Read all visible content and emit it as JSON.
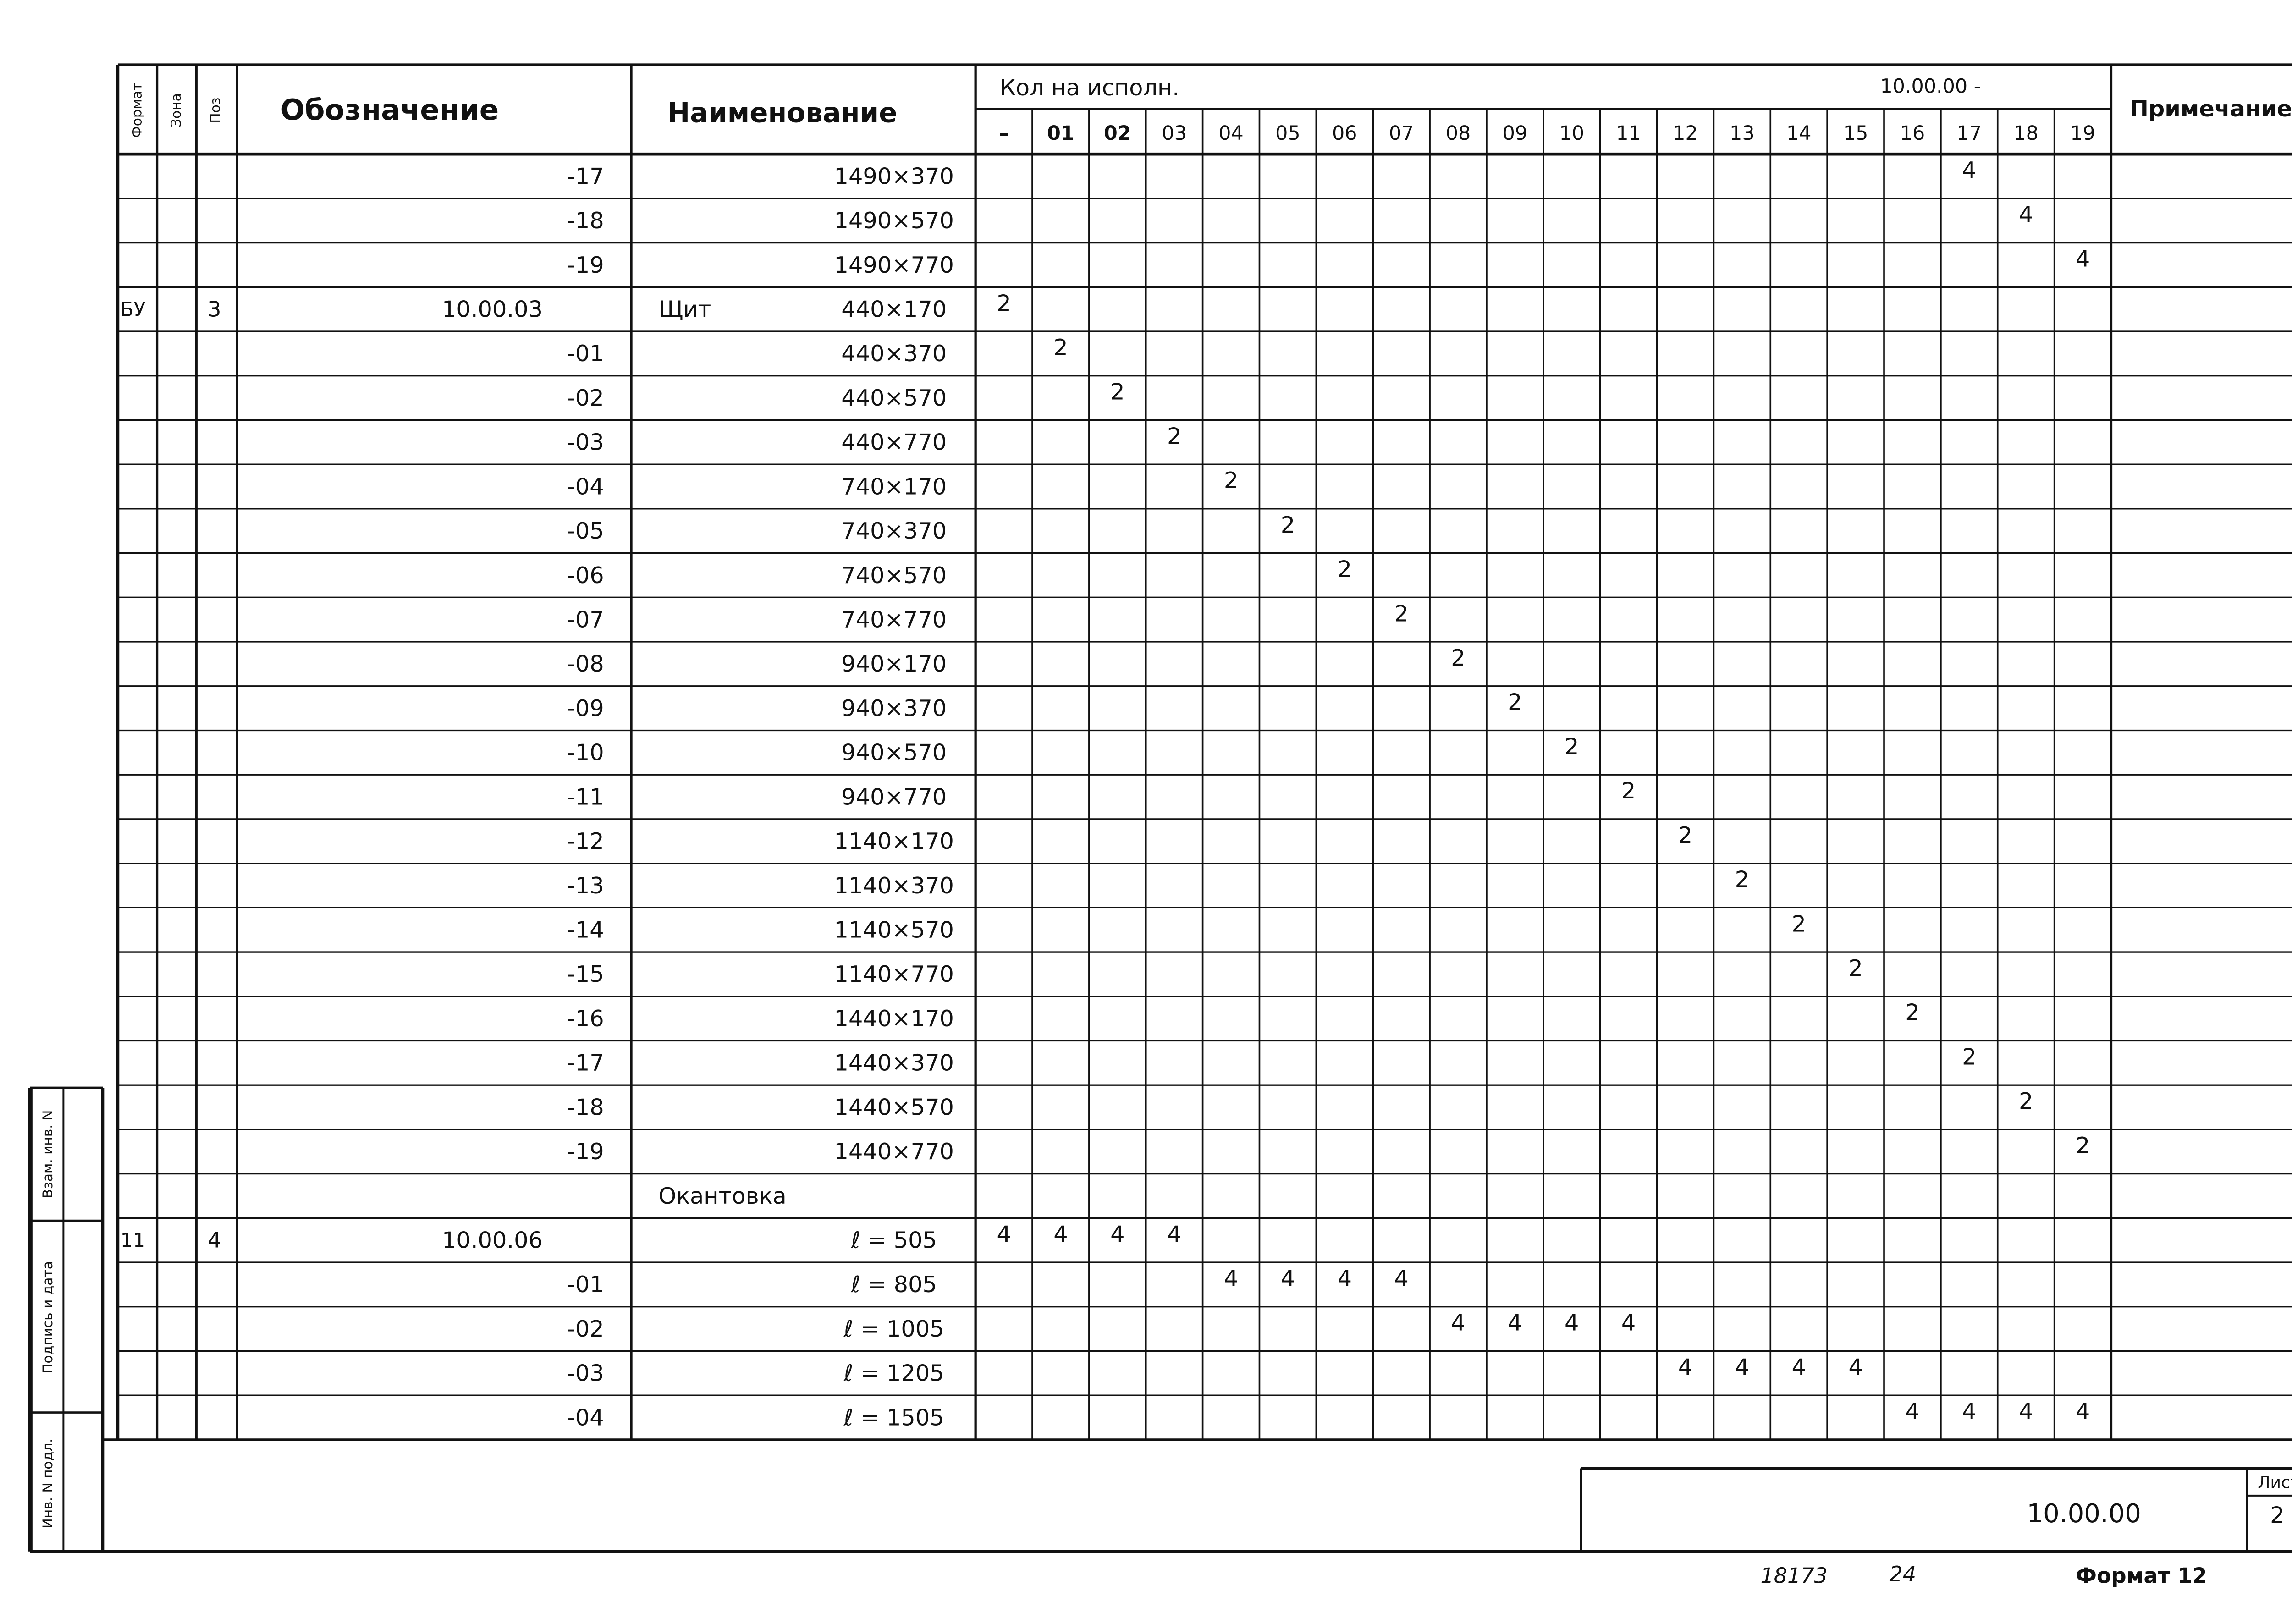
{
  "header": {
    "format": "Формат",
    "zone": "Зона",
    "pos": "Поз",
    "designation": "Обозначение",
    "name": "Наименование",
    "qty_title": "Кол на исполн.",
    "qty_prefix": "10.00.00 -",
    "columns": [
      "–",
      "01",
      "02",
      "03",
      "04",
      "05",
      "06",
      "07",
      "08",
      "09",
      "10",
      "11",
      "12",
      "13",
      "14",
      "15",
      "16",
      "17",
      "18",
      "19"
    ],
    "note": "Примечание"
  },
  "rows": [
    {
      "designation": "-17",
      "size": "1490×370",
      "qty": [
        null,
        null,
        null,
        null,
        null,
        null,
        null,
        null,
        null,
        null,
        null,
        null,
        null,
        null,
        null,
        null,
        null,
        4,
        null,
        null
      ]
    },
    {
      "designation": "-18",
      "size": "1490×570",
      "qty": [
        null,
        null,
        null,
        null,
        null,
        null,
        null,
        null,
        null,
        null,
        null,
        null,
        null,
        null,
        null,
        null,
        null,
        null,
        4,
        null
      ]
    },
    {
      "designation": "-19",
      "size": "1490×770",
      "qty": [
        null,
        null,
        null,
        null,
        null,
        null,
        null,
        null,
        null,
        null,
        null,
        null,
        null,
        null,
        null,
        null,
        null,
        null,
        null,
        4
      ]
    },
    {
      "format": "БУ",
      "pos": "3",
      "designation": "10.00.03",
      "name": "Щит",
      "size": "440×170",
      "qty": [
        2,
        null,
        null,
        null,
        null,
        null,
        null,
        null,
        null,
        null,
        null,
        null,
        null,
        null,
        null,
        null,
        null,
        null,
        null,
        null
      ]
    },
    {
      "designation": "-01",
      "size": "440×370",
      "qty": [
        null,
        2,
        null,
        null,
        null,
        null,
        null,
        null,
        null,
        null,
        null,
        null,
        null,
        null,
        null,
        null,
        null,
        null,
        null,
        null
      ]
    },
    {
      "designation": "-02",
      "size": "440×570",
      "qty": [
        null,
        null,
        2,
        null,
        null,
        null,
        null,
        null,
        null,
        null,
        null,
        null,
        null,
        null,
        null,
        null,
        null,
        null,
        null,
        null
      ]
    },
    {
      "designation": "-03",
      "size": "440×770",
      "qty": [
        null,
        null,
        null,
        2,
        null,
        null,
        null,
        null,
        null,
        null,
        null,
        null,
        null,
        null,
        null,
        null,
        null,
        null,
        null,
        null
      ]
    },
    {
      "designation": "-04",
      "size": "740×170",
      "qty": [
        null,
        null,
        null,
        null,
        2,
        null,
        null,
        null,
        null,
        null,
        null,
        null,
        null,
        null,
        null,
        null,
        null,
        null,
        null,
        null
      ]
    },
    {
      "designation": "-05",
      "size": "740×370",
      "qty": [
        null,
        null,
        null,
        null,
        null,
        2,
        null,
        null,
        null,
        null,
        null,
        null,
        null,
        null,
        null,
        null,
        null,
        null,
        null,
        null
      ]
    },
    {
      "designation": "-06",
      "size": "740×570",
      "qty": [
        null,
        null,
        null,
        null,
        null,
        null,
        2,
        null,
        null,
        null,
        null,
        null,
        null,
        null,
        null,
        null,
        null,
        null,
        null,
        null
      ]
    },
    {
      "designation": "-07",
      "size": "740×770",
      "qty": [
        null,
        null,
        null,
        null,
        null,
        null,
        null,
        2,
        null,
        null,
        null,
        null,
        null,
        null,
        null,
        null,
        null,
        null,
        null,
        null
      ]
    },
    {
      "designation": "-08",
      "size": "940×170",
      "qty": [
        null,
        null,
        null,
        null,
        null,
        null,
        null,
        null,
        2,
        null,
        null,
        null,
        null,
        null,
        null,
        null,
        null,
        null,
        null,
        null
      ]
    },
    {
      "designation": "-09",
      "size": "940×370",
      "qty": [
        null,
        null,
        null,
        null,
        null,
        null,
        null,
        null,
        null,
        2,
        null,
        null,
        null,
        null,
        null,
        null,
        null,
        null,
        null,
        null
      ]
    },
    {
      "designation": "-10",
      "size": "940×570",
      "qty": [
        null,
        null,
        null,
        null,
        null,
        null,
        null,
        null,
        null,
        null,
        2,
        null,
        null,
        null,
        null,
        null,
        null,
        null,
        null,
        null
      ]
    },
    {
      "designation": "-11",
      "size": "940×770",
      "qty": [
        null,
        null,
        null,
        null,
        null,
        null,
        null,
        null,
        null,
        null,
        null,
        2,
        null,
        null,
        null,
        null,
        null,
        null,
        null,
        null
      ]
    },
    {
      "designation": "-12",
      "size": "1140×170",
      "qty": [
        null,
        null,
        null,
        null,
        null,
        null,
        null,
        null,
        null,
        null,
        null,
        null,
        2,
        null,
        null,
        null,
        null,
        null,
        null,
        null
      ]
    },
    {
      "designation": "-13",
      "size": "1140×370",
      "qty": [
        null,
        null,
        null,
        null,
        null,
        null,
        null,
        null,
        null,
        null,
        null,
        null,
        null,
        2,
        null,
        null,
        null,
        null,
        null,
        null
      ]
    },
    {
      "designation": "-14",
      "size": "1140×570",
      "qty": [
        null,
        null,
        null,
        null,
        null,
        null,
        null,
        null,
        null,
        null,
        null,
        null,
        null,
        null,
        2,
        null,
        null,
        null,
        null,
        null
      ]
    },
    {
      "designation": "-15",
      "size": "1140×770",
      "qty": [
        null,
        null,
        null,
        null,
        null,
        null,
        null,
        null,
        null,
        null,
        null,
        null,
        null,
        null,
        null,
        2,
        null,
        null,
        null,
        null
      ]
    },
    {
      "designation": "-16",
      "size": "1440×170",
      "qty": [
        null,
        null,
        null,
        null,
        null,
        null,
        null,
        null,
        null,
        null,
        null,
        null,
        null,
        null,
        null,
        null,
        2,
        null,
        null,
        null
      ]
    },
    {
      "designation": "-17",
      "size": "1440×370",
      "qty": [
        null,
        null,
        null,
        null,
        null,
        null,
        null,
        null,
        null,
        null,
        null,
        null,
        null,
        null,
        null,
        null,
        null,
        2,
        null,
        null
      ]
    },
    {
      "designation": "-18",
      "size": "1440×570",
      "qty": [
        null,
        null,
        null,
        null,
        null,
        null,
        null,
        null,
        null,
        null,
        null,
        null,
        null,
        null,
        null,
        null,
        null,
        null,
        2,
        null
      ]
    },
    {
      "designation": "-19",
      "size": "1440×770",
      "qty": [
        null,
        null,
        null,
        null,
        null,
        null,
        null,
        null,
        null,
        null,
        null,
        null,
        null,
        null,
        null,
        null,
        null,
        null,
        null,
        2
      ]
    },
    {
      "name": "Окантовка"
    },
    {
      "format": "11",
      "pos": "4",
      "designation": "10.00.06",
      "size": "ℓ = 505",
      "qty": [
        4,
        4,
        4,
        4,
        null,
        null,
        null,
        null,
        null,
        null,
        null,
        null,
        null,
        null,
        null,
        null,
        null,
        null,
        null,
        null
      ]
    },
    {
      "designation": "-01",
      "size": "ℓ = 805",
      "qty": [
        null,
        null,
        null,
        null,
        4,
        4,
        4,
        4,
        null,
        null,
        null,
        null,
        null,
        null,
        null,
        null,
        null,
        null,
        null,
        null
      ]
    },
    {
      "designation": "-02",
      "size": "ℓ = 1005",
      "qty": [
        null,
        null,
        null,
        null,
        null,
        null,
        null,
        null,
        4,
        4,
        4,
        4,
        null,
        null,
        null,
        null,
        null,
        null,
        null,
        null
      ]
    },
    {
      "designation": "-03",
      "size": "ℓ = 1205",
      "qty": [
        null,
        null,
        null,
        null,
        null,
        null,
        null,
        null,
        null,
        null,
        null,
        null,
        4,
        4,
        4,
        4,
        null,
        null,
        null,
        null
      ]
    },
    {
      "designation": "-04",
      "size": "ℓ = 1505",
      "qty": [
        null,
        null,
        null,
        null,
        null,
        null,
        null,
        null,
        null,
        null,
        null,
        null,
        null,
        null,
        null,
        null,
        4,
        4,
        4,
        4
      ]
    }
  ],
  "side_stamps": [
    "Взам. инв. N",
    "Подпись и дата",
    "Инв. N подл."
  ],
  "title_block": {
    "document": "10.00.00",
    "sheet_label": "Лист",
    "sheet": "2"
  },
  "footer": {
    "number": "18173",
    "code": "24",
    "format": "Формат 12"
  }
}
